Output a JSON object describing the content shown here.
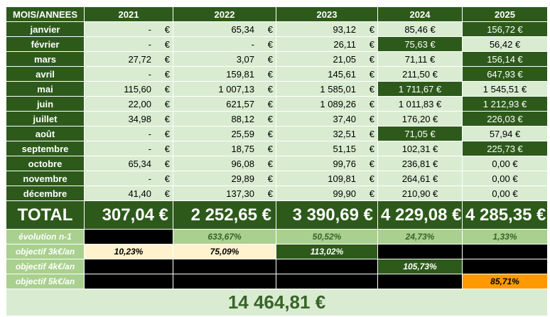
{
  "header": {
    "label": "MOIS/ANNEES",
    "years": [
      "2021",
      "2022",
      "2023",
      "2024",
      "2025"
    ]
  },
  "months": [
    {
      "name": "janvier",
      "v2021": "-",
      "v2022": "65,34",
      "v2023": "93,12",
      "v2024": "85,46 €",
      "v2025": "156,72 €"
    },
    {
      "name": "février",
      "v2021": "-",
      "v2022": "-",
      "v2023": "26,11",
      "v2024": "75,63 €",
      "v2025": "56,42 €"
    },
    {
      "name": "mars",
      "v2021": "27,72",
      "v2022": "3,07",
      "v2023": "21,05",
      "v2024": "71,11 €",
      "v2025": "156,14 €"
    },
    {
      "name": "avril",
      "v2021": "-",
      "v2022": "159,81",
      "v2023": "145,61",
      "v2024": "211,50 €",
      "v2025": "647,93 €"
    },
    {
      "name": "mai",
      "v2021": "115,60",
      "v2022": "1 007,13",
      "v2023": "1 585,01",
      "v2024": "1 711,67 €",
      "v2025": "1 545,51 €"
    },
    {
      "name": "juin",
      "v2021": "22,00",
      "v2022": "621,57",
      "v2023": "1 089,26",
      "v2024": "1 011,83 €",
      "v2025": "1 212,93 €"
    },
    {
      "name": "juillet",
      "v2021": "34,98",
      "v2022": "88,12",
      "v2023": "37,40",
      "v2024": "176,20 €",
      "v2025": "226,03 €"
    },
    {
      "name": "août",
      "v2021": "-",
      "v2022": "25,59",
      "v2023": "32,51",
      "v2024": "71,05 €",
      "v2025": "57,94 €"
    },
    {
      "name": "septembre",
      "v2021": "-",
      "v2022": "18,75",
      "v2023": "51,15",
      "v2024": "102,31 €",
      "v2025": "225,73 €"
    },
    {
      "name": "octobre",
      "v2021": "65,34",
      "v2022": "96,08",
      "v2023": "99,76",
      "v2024": "236,81 €",
      "v2025": "0,00 €"
    },
    {
      "name": "novembre",
      "v2021": "-",
      "v2022": "29,89",
      "v2023": "109,81",
      "v2024": "264,61 €",
      "v2025": "0,00 €"
    },
    {
      "name": "décembre",
      "v2021": "41,40",
      "v2022": "137,30",
      "v2023": "99,90",
      "v2024": "210,90 €",
      "v2025": "0,00 €"
    }
  ],
  "currency": "€",
  "total": {
    "label": "TOTAL",
    "v2021": "307,04  €",
    "v2022": "2 252,65  €",
    "v2023": "3 390,69  €",
    "v2024": "4 229,08 €",
    "v2025": "4 285,35 €"
  },
  "evolution": {
    "label": "évolution n-1",
    "v2022": "633,67%",
    "v2023": "50,52%",
    "v2024": "24,73%",
    "v2025": "1,33%"
  },
  "objectif3k": {
    "label": "objectif 3k€/an",
    "v2021": "10,23%",
    "v2022": "75,09%",
    "v2023": "113,02%"
  },
  "objectif4k": {
    "label": "objectif 4k€/an",
    "v2024": "105,73%"
  },
  "objectif5k": {
    "label": "objectif 5k€/an",
    "v2025": "85,71%"
  },
  "grand_total": "14 464,81 €",
  "colors": {
    "dark_green": "#2d5a1b",
    "light_green": "#d9ecd1",
    "mid_green": "#a9d08e",
    "cream": "#fff2cc",
    "orange": "#ff9900",
    "black": "#000000"
  },
  "dark_cells": {
    "v2024": [
      false,
      true,
      false,
      false,
      true,
      false,
      false,
      true,
      false,
      false,
      false,
      false
    ],
    "v2025": [
      true,
      false,
      true,
      true,
      false,
      true,
      true,
      false,
      true,
      false,
      false,
      false
    ]
  }
}
